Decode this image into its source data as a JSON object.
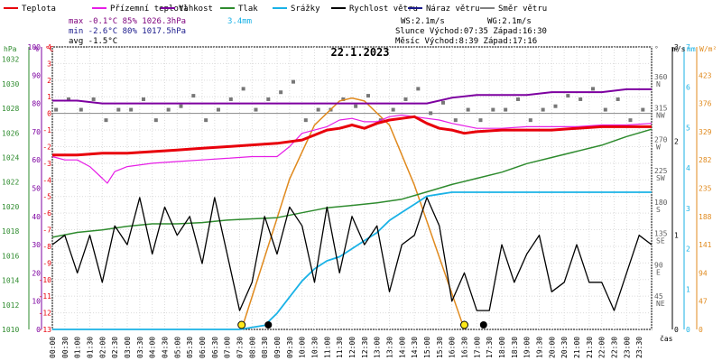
{
  "legend": [
    {
      "label": "Teplota",
      "color": "#e8000b"
    },
    {
      "label": "Přízemní teplota",
      "color": "#e61ee6"
    },
    {
      "label": "Vlhkost",
      "color": "#7d00a0"
    },
    {
      "label": "Tlak",
      "color": "#2e8b2e"
    },
    {
      "label": "Srážky",
      "color": "#1ab2e6"
    },
    {
      "label": "Rychlost větru",
      "color": "#000000"
    },
    {
      "label": "Náraz větru",
      "color": "#1a1a8c"
    },
    {
      "label": "Směr větru",
      "color": "#808080"
    }
  ],
  "stats": {
    "max_line": "max -0.1°C  85%  1026.3hPa",
    "min_line": "min -2.6°C  80%  1017.5hPa",
    "avg_line": "avg -1.5°C",
    "rain_total": "3.4mm",
    "ws": "WS:2.1m/s",
    "wg": "WG:2.1m/s",
    "sun_line": "Slunce Východ:07:35  Západ:16:30",
    "moon_line": "Měsíc  Východ:8:39   Západ:17:16"
  },
  "date_title": "22.1.2023",
  "axis_units": {
    "hpa": "hPa",
    "pct": "%",
    "degc": "°C",
    "deg": "°",
    "ms": "m/s",
    "mm": "mm",
    "wm2": "W/m²",
    "time": "čas"
  },
  "axes": {
    "pressure_ticks": [
      "1010",
      "1012",
      "1014",
      "1016",
      "1018",
      "1020",
      "1022",
      "1024",
      "1026",
      "1028",
      "1030",
      "1032"
    ],
    "humidity_ticks": [
      "0",
      "10",
      "20",
      "30",
      "40",
      "50",
      "60",
      "70",
      "80",
      "90",
      "100"
    ],
    "temp_ticks": [
      "-13",
      "-12",
      "-11",
      "-10",
      "-9",
      "-8",
      "-7",
      "-6",
      "-5",
      "-4",
      "-3",
      "-2",
      "-1",
      "0",
      "1",
      "2",
      "3",
      "4"
    ],
    "dir_ticks": [
      {
        "deg": "360",
        "dir": "N"
      },
      {
        "deg": "315",
        "dir": "NW"
      },
      {
        "deg": "270",
        "dir": "W"
      },
      {
        "deg": "225",
        "dir": "SW"
      },
      {
        "deg": "180",
        "dir": "S"
      },
      {
        "deg": "135",
        "dir": "SE"
      },
      {
        "deg": "90",
        "dir": "E"
      },
      {
        "deg": "45",
        "dir": "NE"
      }
    ],
    "wind_ticks": [
      "0",
      "1",
      "2",
      "3"
    ],
    "rain_ticks": [
      "0",
      "1",
      "2",
      "3",
      "4",
      "5",
      "6",
      "7"
    ],
    "solar_ticks": [
      "0",
      "47",
      "94",
      "141",
      "188",
      "235",
      "282",
      "329",
      "376",
      "423"
    ],
    "time_labels": [
      "00:00",
      "00:30",
      "01:00",
      "01:30",
      "02:00",
      "02:30",
      "03:00",
      "03:30",
      "04:00",
      "04:30",
      "05:00",
      "05:30",
      "06:00",
      "06:30",
      "07:00",
      "07:30",
      "08:00",
      "08:30",
      "09:00",
      "09:30",
      "10:00",
      "10:30",
      "11:00",
      "11:30",
      "12:00",
      "12:30",
      "13:00",
      "13:30",
      "14:00",
      "14:30",
      "15:00",
      "15:30",
      "16:00",
      "16:30",
      "17:00",
      "17:30",
      "18:00",
      "18:30",
      "19:00",
      "19:30",
      "20:00",
      "20:30",
      "21:00",
      "21:30",
      "22:00",
      "22:30",
      "23:00",
      "23:30"
    ]
  },
  "chart_data": {
    "type": "line",
    "title": "22.1.2023",
    "x_unit": "hours",
    "xlim": [
      0,
      24
    ],
    "temperature": {
      "ylim": [
        -13,
        4
      ],
      "x": [
        0,
        1,
        2,
        3,
        4,
        5,
        6,
        7,
        8,
        9,
        10,
        10.5,
        11,
        11.5,
        12,
        12.5,
        13,
        13.5,
        14,
        14.5,
        15,
        15.5,
        16,
        16.5,
        17,
        18,
        19,
        20,
        21,
        22,
        23,
        24
      ],
      "y": [
        -2.5,
        -2.5,
        -2.4,
        -2.4,
        -2.3,
        -2.2,
        -2.1,
        -2.0,
        -1.9,
        -1.8,
        -1.6,
        -1.3,
        -1.0,
        -0.9,
        -0.7,
        -0.9,
        -0.6,
        -0.4,
        -0.3,
        -0.2,
        -0.6,
        -0.9,
        -1.0,
        -1.2,
        -1.1,
        -1.0,
        -1.0,
        -1.0,
        -0.9,
        -0.8,
        -0.8,
        -0.8
      ]
    },
    "ground_temperature": {
      "x": [
        0,
        0.5,
        1,
        1.5,
        2,
        2.2,
        2.5,
        3,
        4,
        5,
        6,
        7,
        8,
        9,
        9.5,
        10,
        10.5,
        11,
        11.5,
        12,
        12.5,
        13,
        13.5,
        14,
        14.5,
        15,
        15.5,
        16,
        17,
        18,
        19,
        20,
        21,
        22,
        23,
        24
      ],
      "y": [
        -2.6,
        -2.8,
        -2.8,
        -3.2,
        -3.9,
        -4.2,
        -3.5,
        -3.2,
        -3.0,
        -2.9,
        -2.8,
        -2.7,
        -2.6,
        -2.6,
        -2.0,
        -1.2,
        -1.0,
        -0.8,
        -0.4,
        -0.3,
        -0.5,
        -0.5,
        -0.2,
        -0.1,
        -0.2,
        -0.3,
        -0.4,
        -0.6,
        -0.9,
        -0.9,
        -0.8,
        -0.8,
        -0.8,
        -0.7,
        -0.7,
        -0.6
      ]
    },
    "humidity": {
      "ylim": [
        0,
        100
      ],
      "x": [
        0,
        1,
        2,
        3,
        4,
        5,
        6,
        7,
        8,
        9,
        10,
        11,
        12,
        13,
        14,
        15,
        16,
        17,
        18,
        19,
        20,
        21,
        22,
        23,
        24
      ],
      "y": [
        81,
        81,
        80,
        80,
        80,
        80,
        80,
        80,
        80,
        80,
        80,
        80,
        80,
        80,
        80,
        80,
        82,
        83,
        83,
        83,
        84,
        84,
        84,
        85,
        85
      ]
    },
    "pressure": {
      "ylim": [
        1010,
        1033
      ],
      "x": [
        0,
        1,
        2,
        3,
        4,
        5,
        6,
        7,
        8,
        9,
        10,
        11,
        12,
        13,
        14,
        15,
        16,
        17,
        18,
        19,
        20,
        21,
        22,
        23,
        24
      ],
      "y": [
        1017.5,
        1017.9,
        1018.1,
        1018.4,
        1018.6,
        1018.6,
        1018.7,
        1018.9,
        1019.0,
        1019.1,
        1019.5,
        1019.9,
        1020.1,
        1020.3,
        1020.6,
        1021.2,
        1021.8,
        1022.3,
        1022.8,
        1023.5,
        1024.0,
        1024.5,
        1025.0,
        1025.7,
        1026.3
      ]
    },
    "rain": {
      "ylim": [
        0,
        7
      ],
      "x": [
        0,
        7.5,
        8.5,
        9,
        9.5,
        10,
        10.5,
        11,
        11.5,
        12,
        12.5,
        13,
        13.5,
        14,
        14.5,
        15,
        15.5,
        16,
        17,
        24
      ],
      "y": [
        0,
        0,
        0.1,
        0.4,
        0.8,
        1.2,
        1.5,
        1.7,
        1.8,
        2.0,
        2.2,
        2.4,
        2.7,
        2.9,
        3.1,
        3.3,
        3.35,
        3.4,
        3.4,
        3.4
      ]
    },
    "wind_speed": {
      "ylim": [
        0,
        3
      ],
      "x": [
        0,
        0.5,
        1,
        1.5,
        2,
        2.5,
        3,
        3.5,
        4,
        4.5,
        5,
        5.5,
        6,
        6.5,
        7,
        7.5,
        8,
        8.5,
        9,
        9.5,
        10,
        10.5,
        11,
        11.5,
        12,
        12.5,
        13,
        13.5,
        14,
        14.5,
        15,
        15.5,
        16,
        16.5,
        17,
        17.5,
        18,
        18.5,
        19,
        19.5,
        20,
        20.5,
        21,
        21.5,
        22,
        22.5,
        23,
        23.5,
        24
      ],
      "y": [
        0.9,
        1.0,
        0.6,
        1.0,
        0.5,
        1.1,
        0.9,
        1.4,
        0.8,
        1.3,
        1.0,
        1.2,
        0.7,
        1.4,
        0.8,
        0.2,
        0.5,
        1.2,
        0.8,
        1.3,
        1.1,
        0.5,
        1.3,
        0.6,
        1.2,
        0.9,
        1.1,
        0.4,
        0.9,
        1.0,
        1.4,
        1.1,
        0.3,
        0.6,
        0.2,
        0.2,
        0.9,
        0.5,
        0.8,
        1.0,
        0.4,
        0.5,
        0.9,
        0.5,
        0.5,
        0.2,
        0.6,
        1.0,
        0.9
      ]
    },
    "solar": {
      "ylim": [
        0,
        470
      ],
      "x": [
        7.58,
        8.5,
        9.5,
        10.5,
        11.5,
        12,
        12.5,
        13.5,
        14.5,
        15.5,
        16.5
      ],
      "y": [
        0,
        120,
        250,
        340,
        380,
        385,
        380,
        340,
        240,
        120,
        0
      ]
    },
    "wind_dir_hourly_deg": [
      315,
      315,
      300,
      315,
      300,
      320,
      300,
      330,
      315,
      340,
      300,
      315,
      320,
      300,
      330,
      310,
      300,
      300,
      315,
      300,
      320,
      330,
      315,
      300
    ],
    "sun_markers_h": [
      7.58,
      16.5
    ],
    "moon_markers_h": [
      8.65,
      17.27
    ]
  }
}
